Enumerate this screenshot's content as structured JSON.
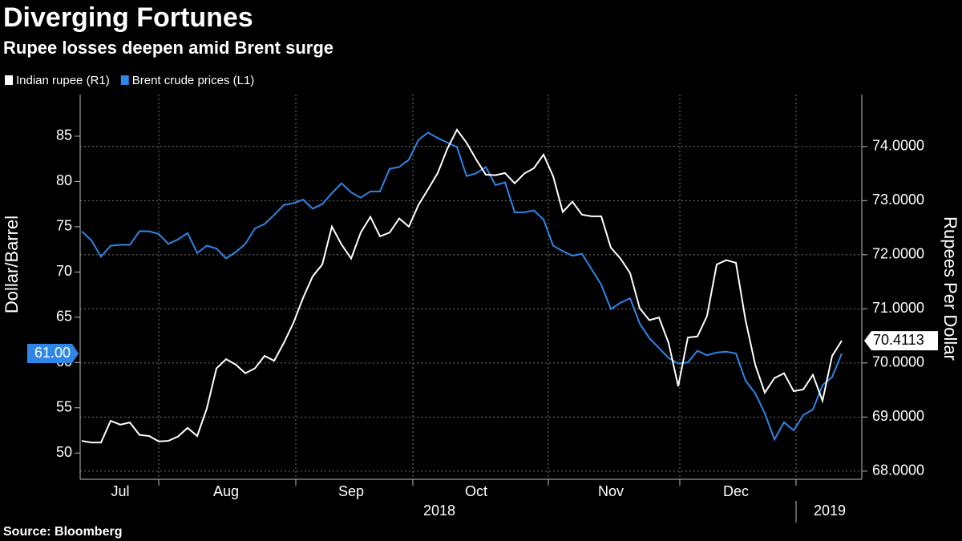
{
  "chart_data": {
    "type": "line",
    "title": "Diverging Fortunes",
    "subtitle": "Rupee losses deepen amid Brent surge",
    "source": "Source: Bloomberg",
    "y_label": "Dollar/Barrel",
    "y2_label": "Rupees Per Dollar",
    "categories": [
      null,
      null,
      null,
      null,
      "Jul",
      null,
      null,
      null,
      null,
      null,
      null,
      null,
      null,
      null,
      null,
      "Aug",
      null,
      null,
      null,
      null,
      null,
      null,
      null,
      null,
      null,
      null,
      null,
      null,
      "Sep",
      null,
      null,
      null,
      null,
      null,
      null,
      null,
      null,
      null,
      null,
      null,
      null,
      "Oct",
      null,
      null,
      null,
      null,
      null,
      null,
      null,
      null,
      null,
      null,
      null,
      null,
      null,
      "Nov",
      null,
      null,
      null,
      null,
      null,
      null,
      null,
      null,
      null,
      null,
      null,
      null,
      "Dec",
      null,
      null,
      null,
      null,
      null,
      null,
      null,
      null,
      null,
      null,
      null
    ],
    "year_labels": [
      "2018",
      "2019"
    ],
    "series": [
      {
        "name": "Indian rupee (R1)",
        "color": "#ffffff",
        "axis": "y2",
        "values": [
          68.56,
          68.53,
          68.53,
          68.93,
          68.86,
          68.9,
          68.67,
          68.65,
          68.55,
          68.56,
          68.64,
          68.8,
          68.65,
          69.16,
          69.9,
          70.07,
          69.97,
          69.81,
          69.9,
          70.13,
          70.04,
          70.37,
          70.74,
          71.2,
          71.6,
          71.82,
          72.52,
          72.19,
          71.93,
          72.41,
          72.7,
          72.34,
          72.41,
          72.67,
          72.52,
          72.92,
          73.21,
          73.51,
          73.96,
          74.31,
          74.07,
          73.76,
          73.48,
          73.47,
          73.51,
          73.32,
          73.5,
          73.6,
          73.85,
          73.45,
          72.79,
          72.98,
          72.74,
          72.71,
          72.71,
          72.13,
          71.93,
          71.66,
          71.01,
          70.79,
          70.84,
          70.37,
          69.57,
          70.47,
          70.49,
          70.87,
          71.82,
          71.9,
          71.85,
          70.79,
          69.97,
          69.45,
          69.72,
          69.81,
          69.48,
          69.51,
          69.78,
          69.3,
          70.13,
          70.4113
        ]
      },
      {
        "name": "Brent crude prices (L1)",
        "color": "#2e86e6",
        "values": [
          74.5,
          73.5,
          71.7,
          72.9,
          73.0,
          73.0,
          74.5,
          74.5,
          74.2,
          73.1,
          73.6,
          74.3,
          72.1,
          72.9,
          72.6,
          71.5,
          72.2,
          73.1,
          74.8,
          75.3,
          76.3,
          77.4,
          77.6,
          78.0,
          77.0,
          77.5,
          78.7,
          79.8,
          78.8,
          78.2,
          78.9,
          78.9,
          81.4,
          81.6,
          82.4,
          84.6,
          85.4,
          84.8,
          84.3,
          83.8,
          80.6,
          80.9,
          81.6,
          79.6,
          79.9,
          76.6,
          76.6,
          76.8,
          75.8,
          72.9,
          72.3,
          71.8,
          72.0,
          70.3,
          68.6,
          65.9,
          66.6,
          67.1,
          64.3,
          62.7,
          61.6,
          60.5,
          59.9,
          60.0,
          61.3,
          60.8,
          61.1,
          61.2,
          61.0,
          58.0,
          56.6,
          54.4,
          51.5,
          53.4,
          52.5,
          54.2,
          54.8,
          57.5,
          58.4,
          61.0
        ],
        "last_value_label": "61.00"
      }
    ],
    "ylim": [
      47.1,
      89.6
    ],
    "yticks": [
      50,
      55,
      60,
      65,
      70,
      75,
      80,
      85
    ],
    "y2lim": [
      67.85,
      74.96
    ],
    "y2ticks": [
      {
        "value": 68,
        "label": "68.0000"
      },
      {
        "value": 69,
        "label": "69.0000"
      },
      {
        "value": 70,
        "label": "70.0000"
      },
      {
        "value": 71,
        "label": "71.0000"
      },
      {
        "value": 72,
        "label": "72.0000"
      },
      {
        "value": 73,
        "label": "73.0000"
      },
      {
        "value": 74,
        "label": "74.0000"
      }
    ],
    "grid": true,
    "legend": "top-left"
  }
}
